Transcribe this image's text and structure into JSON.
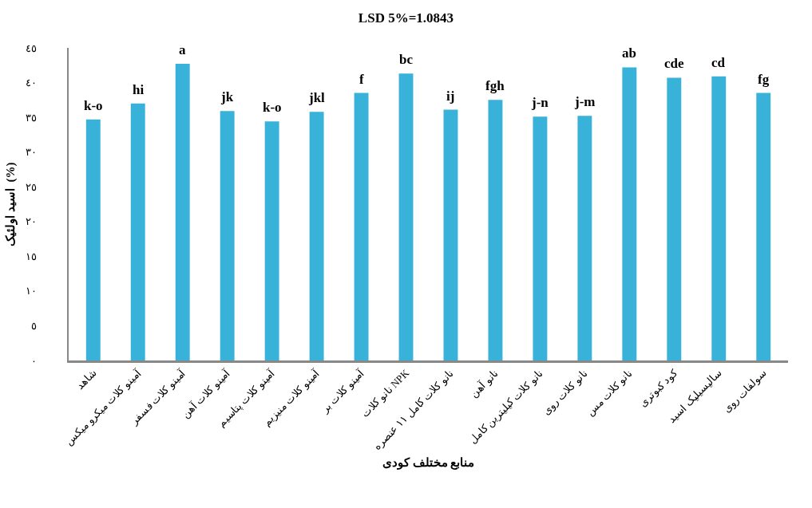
{
  "chart_data": {
    "type": "bar",
    "title": "LSD 5%=1.0843",
    "xlabel": "منابع مختلف کودی",
    "ylabel": "اسید اولئیک  (%)",
    "categories": [
      "شاهد",
      "آمینو کلات میکرو میکس",
      "آمینو کلات فسفر",
      "آمینو کلات آهن",
      "آمینو کلات پتاسیم",
      "آمینو کلات منیزیم",
      "آمینو کلات بر",
      "نانو کلات NPK",
      "نانو کلات کامل ۱۱ عنصره",
      "نانو آهن",
      "نانو کلات کیلیترین کامل",
      "نانو کلات روی",
      "نانو کلات مس",
      "کود کبوتری",
      "سالیسیلیک اسید",
      "سولفات روی"
    ],
    "values": [
      34.7,
      37.0,
      42.7,
      35.9,
      34.4,
      35.8,
      38.5,
      41.3,
      36.1,
      37.5,
      35.1,
      35.2,
      42.2,
      40.7,
      40.9,
      38.5
    ],
    "color": "#38b2d8",
    "ylim": [
      0,
      45
    ],
    "yticks": [
      {
        "value": 0,
        "label": "٠"
      },
      {
        "value": 5,
        "label": "٥"
      },
      {
        "value": 10,
        "label": "١٠"
      },
      {
        "value": 15,
        "label": "١٥"
      },
      {
        "value": 20,
        "label": "٢٠"
      },
      {
        "value": 25,
        "label": "٢٥"
      },
      {
        "value": 30,
        "label": "٣٠"
      },
      {
        "value": 35,
        "label": "٣٥"
      },
      {
        "value": 40,
        "label": "٤٠"
      },
      {
        "value": 45,
        "label": "٤٥"
      }
    ],
    "annotations": [
      {
        "text": "k-o",
        "x": "شاهد",
        "y": 34.7
      },
      {
        "text": "hi",
        "x": "آمینو کلات میکرو میکس",
        "y": 37.0
      },
      {
        "text": "a",
        "x": "آمینو کلات فسفر",
        "y": 42.7
      },
      {
        "text": "jk",
        "x": "آمینو کلات آهن",
        "y": 35.9
      },
      {
        "text": "k-o",
        "x": "آمینو کلات پتاسیم",
        "y": 34.4
      },
      {
        "text": "jkl",
        "x": "آمینو کلات منیزیم",
        "y": 35.8
      },
      {
        "text": "f",
        "x": "آمینو کلات بر",
        "y": 38.5
      },
      {
        "text": "bc",
        "x": "نانو کلات NPK",
        "y": 41.3
      },
      {
        "text": "ij",
        "x": "نانو کلات کامل ۱۱ عنصره",
        "y": 36.1
      },
      {
        "text": "fgh",
        "x": "نانو آهن",
        "y": 37.5
      },
      {
        "text": "j-n",
        "x": "نانو کلات کیلیترین کامل",
        "y": 35.1
      },
      {
        "text": "j-m",
        "x": "نانو کلات روی",
        "y": 35.2
      },
      {
        "text": "ab",
        "x": "نانو کلات مس",
        "y": 42.2
      },
      {
        "text": "cde",
        "x": "کود کبوتری",
        "y": 40.7
      },
      {
        "text": "cd",
        "x": "سالیسیلیک اسید",
        "y": 40.9
      },
      {
        "text": "fg",
        "x": "سولفات روی",
        "y": 38.5
      }
    ]
  }
}
